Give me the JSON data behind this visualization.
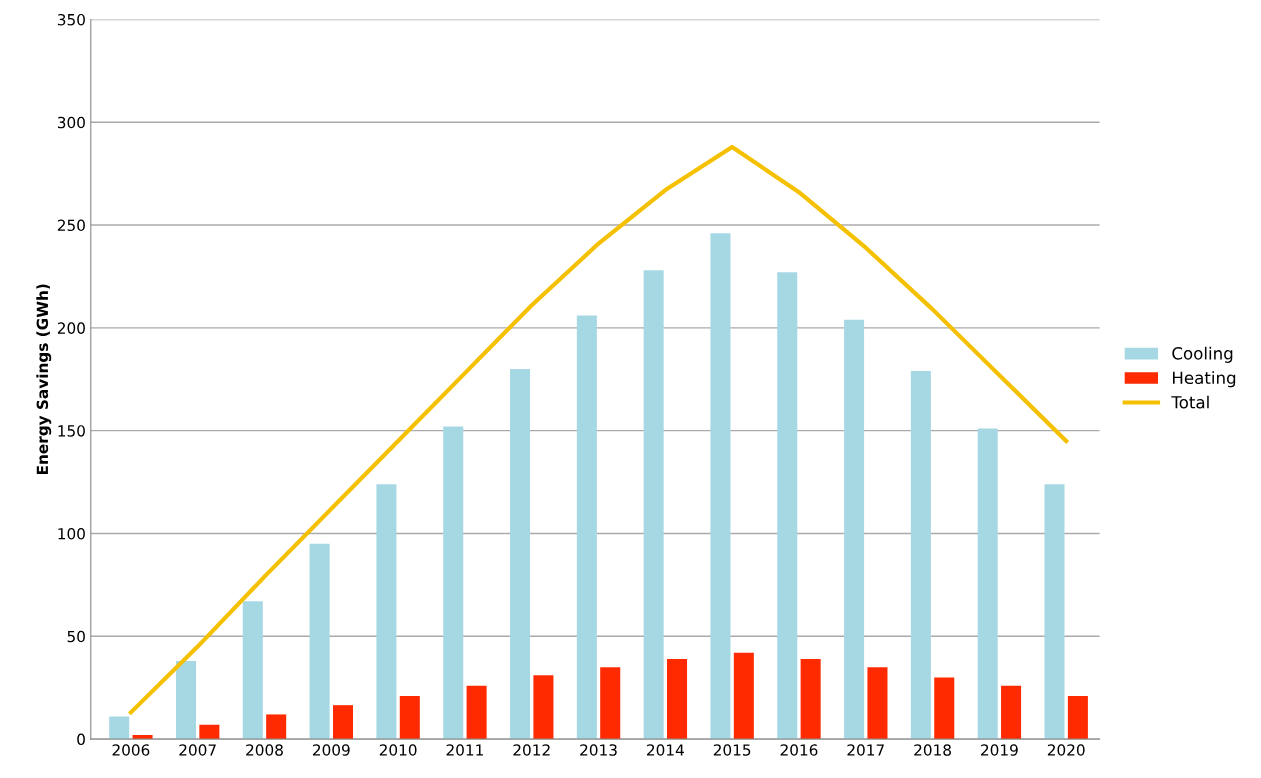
{
  "chart_data": {
    "type": "bar",
    "ylabel": "Energy Savings (GWh)",
    "categories": [
      "2006",
      "2007",
      "2008",
      "2009",
      "2010",
      "2011",
      "2012",
      "2013",
      "2014",
      "2015",
      "2016",
      "2017",
      "2018",
      "2019",
      "2020"
    ],
    "series": [
      {
        "name": "Cooling",
        "color": "#a6d8e4",
        "values": [
          11,
          38,
          67,
          95,
          124,
          152,
          180,
          206,
          228,
          246,
          227,
          204,
          179,
          151,
          124
        ]
      },
      {
        "name": "Heating",
        "color": "#ff2a00",
        "values": [
          2,
          7,
          12,
          16.5,
          21,
          26,
          31,
          35,
          39,
          42,
          39,
          35,
          30,
          26,
          21
        ]
      },
      {
        "name": "Total",
        "type": "line",
        "color": "#f5c000",
        "values": [
          13,
          45,
          79,
          112,
          145,
          178,
          211,
          241,
          267,
          288,
          266,
          239,
          209,
          177,
          145
        ]
      }
    ],
    "ylim": [
      0,
      350
    ],
    "yticks": [
      0,
      50,
      100,
      150,
      200,
      250,
      300,
      350
    ],
    "grid": "y",
    "legend": "right",
    "marker": "none",
    "line_style": "solid"
  }
}
